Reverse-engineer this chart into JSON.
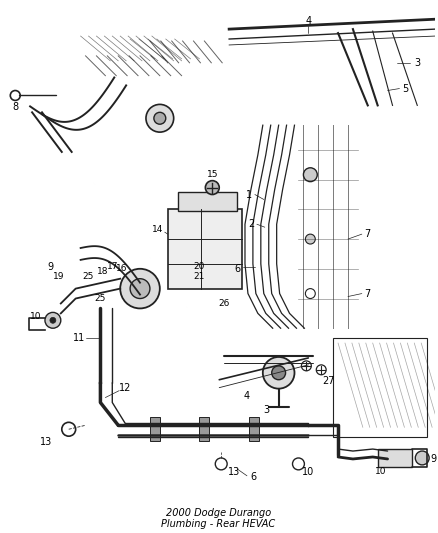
{
  "title": "2000 Dodge Durango\nPlumbing - Rear HEVAC",
  "bg": "#ffffff",
  "lc": "#222222",
  "tc": "#000000",
  "fig_w": 4.38,
  "fig_h": 5.33,
  "dpi": 100
}
